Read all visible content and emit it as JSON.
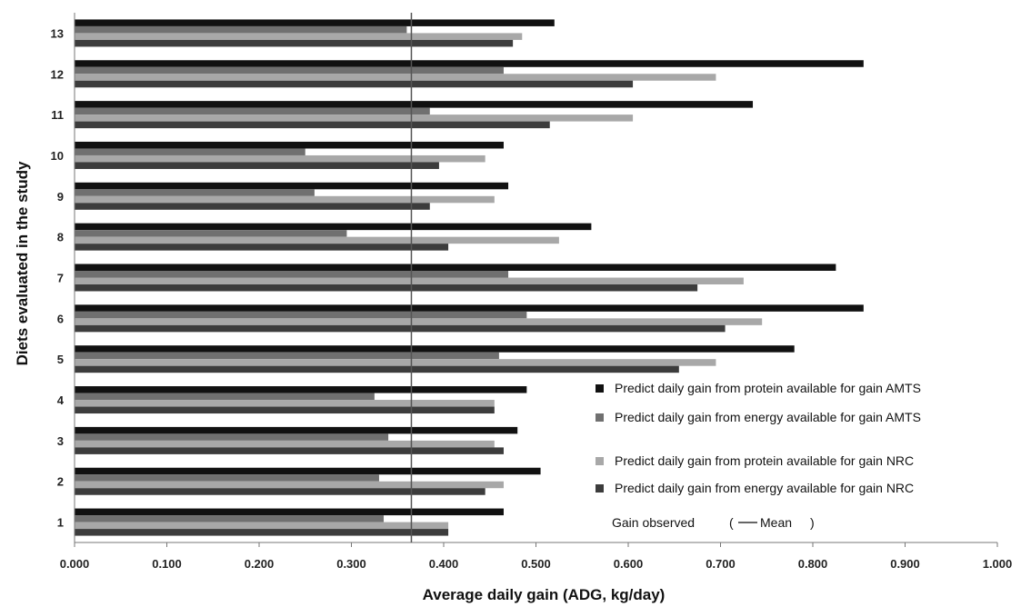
{
  "chart_data": {
    "type": "bar",
    "orientation": "horizontal",
    "xlabel": "Average daily gain (ADG, kg/day)",
    "ylabel": "Diets evaluated in the study",
    "xlim": [
      0,
      1
    ],
    "xticks": [
      "0.000",
      "0.100",
      "0.200",
      "0.300",
      "0.400",
      "0.500",
      "0.600",
      "0.700",
      "0.800",
      "0.900",
      "1.000"
    ],
    "categories": [
      "1",
      "2",
      "3",
      "4",
      "5",
      "6",
      "7",
      "8",
      "9",
      "10",
      "11",
      "12",
      "13"
    ],
    "grid": false,
    "legend_position": "bottom-right",
    "series": [
      {
        "name": "Predict daily gain from protein available for gain AMTS",
        "color": "#111111",
        "values": [
          0.465,
          0.505,
          0.48,
          0.49,
          0.78,
          0.855,
          0.825,
          0.56,
          0.47,
          0.465,
          0.735,
          0.855,
          0.52
        ]
      },
      {
        "name": "Predict daily gain from energy available for gain AMTS",
        "color": "#707070",
        "values": [
          0.335,
          0.33,
          0.34,
          0.325,
          0.46,
          0.49,
          0.47,
          0.295,
          0.26,
          0.25,
          0.385,
          0.465,
          0.36
        ]
      },
      {
        "name": "Predict daily gain from protein available for gain NRC",
        "color": "#a8a8a8",
        "values": [
          0.405,
          0.465,
          0.455,
          0.455,
          0.695,
          0.745,
          0.725,
          0.525,
          0.455,
          0.445,
          0.605,
          0.695,
          0.485
        ]
      },
      {
        "name": "Predict daily gain from energy available for gain NRC",
        "color": "#3c3c3c",
        "values": [
          0.405,
          0.445,
          0.465,
          0.455,
          0.655,
          0.705,
          0.675,
          0.405,
          0.385,
          0.395,
          0.515,
          0.605,
          0.475
        ]
      }
    ],
    "mean_line": {
      "value": 0.365,
      "legend_label": "Gain observed",
      "mean_label": "Mean",
      "color": "#555555"
    }
  }
}
